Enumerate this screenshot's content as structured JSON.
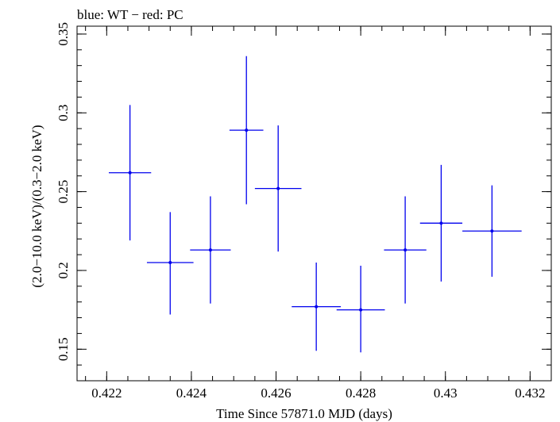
{
  "chart_data": {
    "type": "scatter",
    "title": "blue: WT − red: PC",
    "xlabel": "Time Since 57871.0 MJD (days)",
    "ylabel": "(2.0−10.0 keV)/(0.3−2.0 keV)",
    "xlim": [
      0.4213,
      0.4325
    ],
    "ylim": [
      0.13,
      0.355
    ],
    "xticks": [
      {
        "v": 0.422,
        "label": "0.422"
      },
      {
        "v": 0.424,
        "label": "0.424"
      },
      {
        "v": 0.426,
        "label": "0.426"
      },
      {
        "v": 0.428,
        "label": "0.428"
      },
      {
        "v": 0.43,
        "label": "0.43"
      },
      {
        "v": 0.432,
        "label": "0.432"
      }
    ],
    "yticks": [
      {
        "v": 0.15,
        "label": "0.15"
      },
      {
        "v": 0.2,
        "label": "0.2"
      },
      {
        "v": 0.25,
        "label": "0.25"
      },
      {
        "v": 0.3,
        "label": "0.3"
      },
      {
        "v": 0.35,
        "label": "0.35"
      }
    ],
    "xminor": 0.0005,
    "yminor": 0.01,
    "series": [
      {
        "name": "WT",
        "color": "#0000ee",
        "points": [
          {
            "x": 0.42255,
            "xerr": 0.0005,
            "y": 0.262,
            "yerr_lo": 0.043,
            "yerr_hi": 0.043
          },
          {
            "x": 0.4235,
            "xerr": 0.00055,
            "y": 0.205,
            "yerr_lo": 0.033,
            "yerr_hi": 0.032
          },
          {
            "x": 0.42445,
            "xerr": 0.00048,
            "y": 0.213,
            "yerr_lo": 0.034,
            "yerr_hi": 0.034
          },
          {
            "x": 0.4253,
            "xerr": 0.0004,
            "y": 0.289,
            "yerr_lo": 0.047,
            "yerr_hi": 0.047
          },
          {
            "x": 0.42605,
            "xerr": 0.00055,
            "y": 0.252,
            "yerr_lo": 0.04,
            "yerr_hi": 0.04
          },
          {
            "x": 0.42695,
            "xerr": 0.00058,
            "y": 0.177,
            "yerr_lo": 0.028,
            "yerr_hi": 0.028
          },
          {
            "x": 0.428,
            "xerr": 0.00057,
            "y": 0.175,
            "yerr_lo": 0.027,
            "yerr_hi": 0.028
          },
          {
            "x": 0.42905,
            "xerr": 0.0005,
            "y": 0.213,
            "yerr_lo": 0.034,
            "yerr_hi": 0.034
          },
          {
            "x": 0.4299,
            "xerr": 0.0005,
            "y": 0.23,
            "yerr_lo": 0.037,
            "yerr_hi": 0.037
          },
          {
            "x": 0.4311,
            "xerr": 0.0007,
            "y": 0.225,
            "yerr_lo": 0.029,
            "yerr_hi": 0.029
          }
        ]
      }
    ]
  }
}
